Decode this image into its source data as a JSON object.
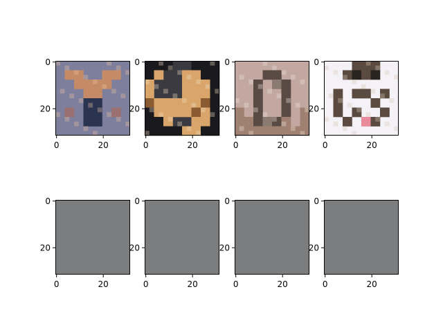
{
  "chart_data": [
    {
      "type": "image",
      "row": "top",
      "index": 0,
      "subject": "deer head with antlers",
      "xlim": [
        -0.5,
        31.5
      ],
      "ylim": [
        31.5,
        -0.5
      ],
      "xticks": [
        0,
        20
      ],
      "yticks": [
        0,
        20
      ],
      "colors": {
        "bg": "#7d7f9c",
        "a": "#c58a66",
        "b": "#e8c0a0",
        "c": "#2a3450",
        "d": "#9a7070"
      }
    },
    {
      "type": "image",
      "row": "top",
      "index": 1,
      "subject": "dog lying on couch",
      "xlim": [
        -0.5,
        31.5
      ],
      "ylim": [
        31.5,
        -0.5
      ],
      "xticks": [
        0,
        20
      ],
      "yticks": [
        0,
        20
      ],
      "colors": {
        "bg": "#3a3a40",
        "a": "#d9a56a",
        "b": "#f0dcc0",
        "c": "#8a5a30",
        "d": "#1a1a1e"
      }
    },
    {
      "type": "image",
      "row": "top",
      "index": 2,
      "subject": "bird perched",
      "xlim": [
        -0.5,
        31.5
      ],
      "ylim": [
        31.5,
        -0.5
      ],
      "xticks": [
        0,
        20
      ],
      "yticks": [
        0,
        20
      ],
      "colors": {
        "bg": "#c2a8a0",
        "a": "#5a4a44",
        "b": "#eee6de",
        "c": "#8a7a70",
        "d": "#a08070"
      }
    },
    {
      "type": "image",
      "row": "top",
      "index": 3,
      "subject": "cat figurine on white",
      "xlim": [
        -0.5,
        31.5
      ],
      "ylim": [
        31.5,
        -0.5
      ],
      "xticks": [
        0,
        20
      ],
      "yticks": [
        0,
        20
      ],
      "colors": {
        "bg": "#f4f2f6",
        "a": "#5a4a40",
        "b": "#d8c8b8",
        "c": "#2a2420",
        "d": "#e88a9a"
      }
    },
    {
      "type": "image",
      "row": "bottom",
      "index": 0,
      "subject": "uniform gray output",
      "xlim": [
        -0.5,
        31.5
      ],
      "ylim": [
        31.5,
        -0.5
      ],
      "xticks": [
        0,
        20
      ],
      "yticks": [
        0,
        20
      ],
      "colors": {
        "bg": "#7b7d7f"
      }
    },
    {
      "type": "image",
      "row": "bottom",
      "index": 1,
      "subject": "uniform gray output",
      "xlim": [
        -0.5,
        31.5
      ],
      "ylim": [
        31.5,
        -0.5
      ],
      "xticks": [
        0,
        20
      ],
      "yticks": [
        0,
        20
      ],
      "colors": {
        "bg": "#7b7d7f"
      }
    },
    {
      "type": "image",
      "row": "bottom",
      "index": 2,
      "subject": "uniform gray output",
      "xlim": [
        -0.5,
        31.5
      ],
      "ylim": [
        31.5,
        -0.5
      ],
      "xticks": [
        0,
        20
      ],
      "yticks": [
        0,
        20
      ],
      "colors": {
        "bg": "#7b7d7f"
      }
    },
    {
      "type": "image",
      "row": "bottom",
      "index": 3,
      "subject": "uniform gray output",
      "xlim": [
        -0.5,
        31.5
      ],
      "ylim": [
        31.5,
        -0.5
      ],
      "xticks": [
        0,
        20
      ],
      "yticks": [
        0,
        20
      ],
      "colors": {
        "bg": "#7b7d7f"
      }
    }
  ]
}
